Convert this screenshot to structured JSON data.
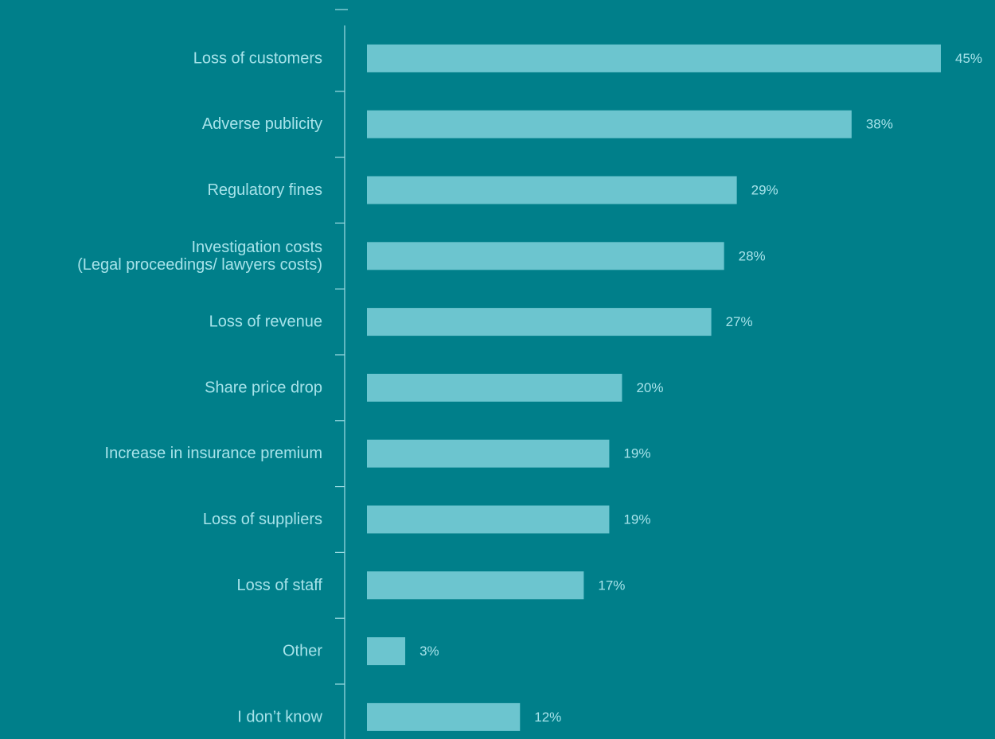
{
  "colors": {
    "background": "#007f8a",
    "bar": "#6cc5cf",
    "text": "#a7e3ea",
    "axis": "#9fdde4"
  },
  "chart_data": {
    "type": "bar",
    "orientation": "horizontal",
    "title": "",
    "xlabel": "",
    "ylabel": "",
    "xlim": [
      0,
      45
    ],
    "grid": false,
    "legend": "none",
    "categories": [
      [
        "Loss of customers"
      ],
      [
        "Adverse publicity"
      ],
      [
        "Regulatory fines"
      ],
      [
        "Investigation costs",
        "(Legal proceedings/ lawyers costs)"
      ],
      [
        "Loss of revenue"
      ],
      [
        "Share price drop"
      ],
      [
        "Increase in insurance premium"
      ],
      [
        "Loss of suppliers"
      ],
      [
        "Loss of staff"
      ],
      [
        "Other"
      ],
      [
        "I don’t know"
      ]
    ],
    "values": [
      45,
      38,
      29,
      28,
      27,
      20,
      19,
      19,
      17,
      3,
      12
    ],
    "value_labels": [
      "45%",
      "38%",
      "29%",
      "28%",
      "27%",
      "20%",
      "19%",
      "19%",
      "17%",
      "3%",
      "12%"
    ]
  }
}
